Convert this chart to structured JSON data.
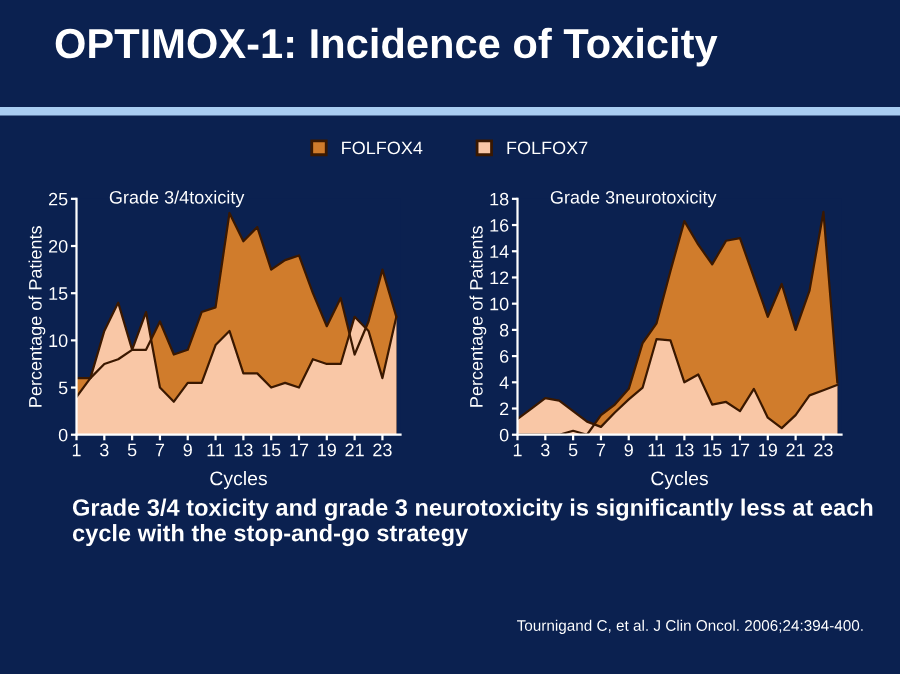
{
  "chart_data": [
    {
      "type": "area",
      "title": "OPTIMOX-1: Incidence of Toxicity",
      "subtitle": "Grade 3/4toxicity",
      "xlabel": "Cycles",
      "ylabel": "Percentage of Patients",
      "x": [
        1,
        2,
        3,
        4,
        5,
        6,
        7,
        8,
        9,
        10,
        11,
        12,
        13,
        14,
        15,
        16,
        17,
        18,
        19,
        20,
        21,
        22,
        23,
        24
      ],
      "xlim": [
        1,
        24.3
      ],
      "xticks": [
        1,
        3,
        5,
        7,
        9,
        11,
        13,
        15,
        17,
        19,
        21,
        23
      ],
      "ylim": [
        0,
        25
      ],
      "yticks": [
        0,
        5,
        10,
        15,
        20,
        25
      ],
      "grid": false,
      "legend": "top",
      "series": [
        {
          "name": "FOLFOX4",
          "color": "#d07c2c",
          "values": [
            6,
            6,
            7.5,
            8,
            9,
            9,
            12,
            8.5,
            9,
            13,
            13.5,
            23.5,
            20.5,
            22,
            17.5,
            18.5,
            19,
            15,
            11.5,
            14.5,
            8.5,
            12,
            17.5,
            12.5
          ]
        },
        {
          "name": "FOLFOX7",
          "color": "#f9c7a6",
          "values": [
            4,
            6,
            11,
            14,
            9,
            13,
            5,
            3.5,
            5.5,
            5.5,
            9.5,
            11,
            6.5,
            6.5,
            5,
            5.5,
            5,
            8,
            7.5,
            7.5,
            12.5,
            11,
            6,
            12.5
          ]
        }
      ],
      "annotations": [
        "Grade 3/4 toxicity and grade 3 neurotoxicity is significantly less at each cycle with the stop-and-go strategy",
        "Tournigand C, et al. J Clin Oncol. 2006;24:394-400."
      ]
    },
    {
      "type": "area",
      "subtitle": "Grade 3neurotoxicity",
      "xlabel": "Cycles",
      "ylabel": "Percentage of Patients",
      "x": [
        1,
        2,
        3,
        4,
        5,
        6,
        7,
        8,
        9,
        10,
        11,
        12,
        13,
        14,
        15,
        16,
        17,
        18,
        19,
        20,
        21,
        22,
        23,
        24
      ],
      "xlim": [
        1,
        24.3
      ],
      "xticks": [
        1,
        3,
        5,
        7,
        9,
        11,
        13,
        15,
        17,
        19,
        21,
        23
      ],
      "ylim": [
        0,
        18
      ],
      "yticks": [
        0,
        2,
        4,
        6,
        8,
        10,
        12,
        14,
        16,
        18
      ],
      "grid": false,
      "series": [
        {
          "name": "FOLFOX4",
          "color": "#d07c2c",
          "values": [
            0,
            0,
            0,
            0,
            0.3,
            0,
            1.5,
            2.3,
            3.5,
            7,
            8.5,
            12.5,
            16.3,
            14.5,
            13,
            14.8,
            15,
            12,
            9,
            11.5,
            8,
            11,
            17,
            4
          ]
        },
        {
          "name": "FOLFOX7",
          "color": "#f9c7a6",
          "values": [
            1.2,
            2,
            2.8,
            2.6,
            1.8,
            1,
            0.6,
            1.7,
            2.7,
            3.6,
            7.3,
            7.2,
            4,
            4.6,
            2.3,
            2.5,
            1.8,
            3.5,
            1.3,
            0.5,
            1.5,
            3,
            3.4,
            3.8
          ]
        }
      ]
    }
  ]
}
